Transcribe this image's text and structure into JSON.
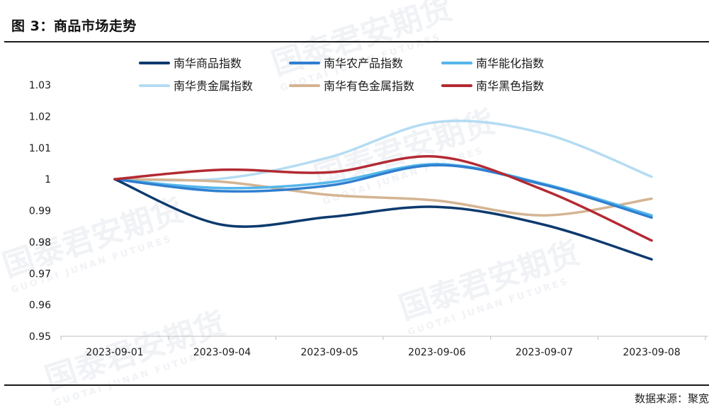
{
  "figure": {
    "title": "图 3：商品市场走势",
    "source": "数据来源：聚宽",
    "watermark": "国泰君安期货",
    "watermark_sub": "GUOTAI JUNAN FUTURES"
  },
  "chart_data": {
    "type": "line",
    "categories": [
      "2023-09-01",
      "2023-09-04",
      "2023-09-05",
      "2023-09-06",
      "2023-09-07",
      "2023-09-08"
    ],
    "ylim": [
      0.95,
      1.03
    ],
    "yticks": [
      0.95,
      0.96,
      0.97,
      0.98,
      0.99,
      1,
      1.01,
      1.02,
      1.03
    ],
    "ytick_labels": [
      "0.95",
      "0.96",
      "0.97",
      "0.98",
      "0.99",
      "1",
      "1.01",
      "1.02",
      "1.03"
    ],
    "grid": false,
    "legend_position": "top",
    "smooth": true,
    "series": [
      {
        "name": "南华商品指数",
        "color": "#0d3a6e",
        "values": [
          1.0,
          0.9855,
          0.988,
          0.9912,
          0.9855,
          0.9745
        ]
      },
      {
        "name": "南华农产品指数",
        "color": "#2f7fd0",
        "values": [
          1.0,
          0.9962,
          0.998,
          1.0045,
          0.9982,
          0.9878
        ]
      },
      {
        "name": "南华能化指数",
        "color": "#55b6ea",
        "values": [
          1.0,
          0.9972,
          0.999,
          1.0048,
          0.9985,
          0.9885
        ]
      },
      {
        "name": "南华贵金属指数",
        "color": "#b4dcf2",
        "values": [
          1.0,
          1.0002,
          1.007,
          1.0182,
          1.0145,
          1.0008
        ]
      },
      {
        "name": "南华有色金属指数",
        "color": "#d4b493",
        "values": [
          1.0,
          0.9992,
          0.995,
          0.9932,
          0.9885,
          0.9938
        ]
      },
      {
        "name": "南华黑色指数",
        "color": "#b32a33",
        "values": [
          1.0,
          1.003,
          1.0022,
          1.0072,
          0.9965,
          0.9805
        ]
      }
    ]
  }
}
